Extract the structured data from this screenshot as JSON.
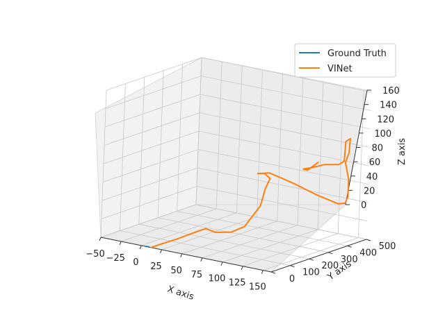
{
  "chart_data": {
    "type": "line",
    "projection": "3d",
    "title": "",
    "xlabel": "X axis",
    "ylabel": "Y axis",
    "zlabel": "Z axis",
    "xlim": [
      -50,
      160
    ],
    "ylim": [
      0,
      500
    ],
    "zlim": [
      0,
      160
    ],
    "xticks": [
      "−50",
      "−25",
      "0",
      "25",
      "50",
      "75",
      "100",
      "125",
      "150"
    ],
    "yticks": [
      "0",
      "100",
      "200",
      "300",
      "400",
      "500"
    ],
    "zticks": [
      "0",
      "20",
      "40",
      "60",
      "80",
      "100",
      "120",
      "140",
      "160"
    ],
    "grid": true,
    "legend": {
      "position": "top-right",
      "entries": [
        "Ground Truth",
        "VINet"
      ]
    },
    "series": [
      {
        "name": "Ground Truth",
        "color": "#1f77b4",
        "points": [
          {
            "x": 5,
            "y": 0,
            "z": 0
          },
          {
            "x": 9,
            "y": 2,
            "z": 0
          }
        ]
      },
      {
        "name": "VINet",
        "color": "#ff7f0e",
        "points": [
          {
            "x": 12,
            "y": 0,
            "z": 0
          },
          {
            "x": 16,
            "y": 25,
            "z": 2
          },
          {
            "x": 25,
            "y": 80,
            "z": 6
          },
          {
            "x": 36,
            "y": 140,
            "z": 12
          },
          {
            "x": 40,
            "y": 165,
            "z": 14
          },
          {
            "x": 52,
            "y": 165,
            "z": 12
          },
          {
            "x": 68,
            "y": 180,
            "z": 14
          },
          {
            "x": 78,
            "y": 205,
            "z": 20
          },
          {
            "x": 84,
            "y": 260,
            "z": 40
          },
          {
            "x": 80,
            "y": 300,
            "z": 55
          },
          {
            "x": 75,
            "y": 345,
            "z": 62
          },
          {
            "x": 55,
            "y": 400,
            "z": 60
          },
          {
            "x": 40,
            "y": 430,
            "z": 55
          },
          {
            "x": 50,
            "y": 450,
            "z": 56
          },
          {
            "x": 80,
            "y": 450,
            "z": 50
          },
          {
            "x": 110,
            "y": 440,
            "z": 44
          },
          {
            "x": 140,
            "y": 430,
            "z": 40
          },
          {
            "x": 148,
            "y": 432,
            "z": 42
          },
          {
            "x": 152,
            "y": 428,
            "z": 50
          },
          {
            "x": 155,
            "y": 415,
            "z": 70
          },
          {
            "x": 155,
            "y": 395,
            "z": 90
          },
          {
            "x": 160,
            "y": 390,
            "z": 102
          },
          {
            "x": 162,
            "y": 386,
            "z": 118
          },
          {
            "x": 157,
            "y": 384,
            "z": 114
          },
          {
            "x": 155,
            "y": 388,
            "z": 92
          },
          {
            "x": 150,
            "y": 380,
            "z": 88
          },
          {
            "x": 135,
            "y": 370,
            "z": 86
          },
          {
            "x": 120,
            "y": 372,
            "z": 80
          },
          {
            "x": 108,
            "y": 376,
            "z": 76
          },
          {
            "x": 114,
            "y": 372,
            "z": 76
          },
          {
            "x": 125,
            "y": 380,
            "z": 86
          }
        ]
      }
    ]
  }
}
